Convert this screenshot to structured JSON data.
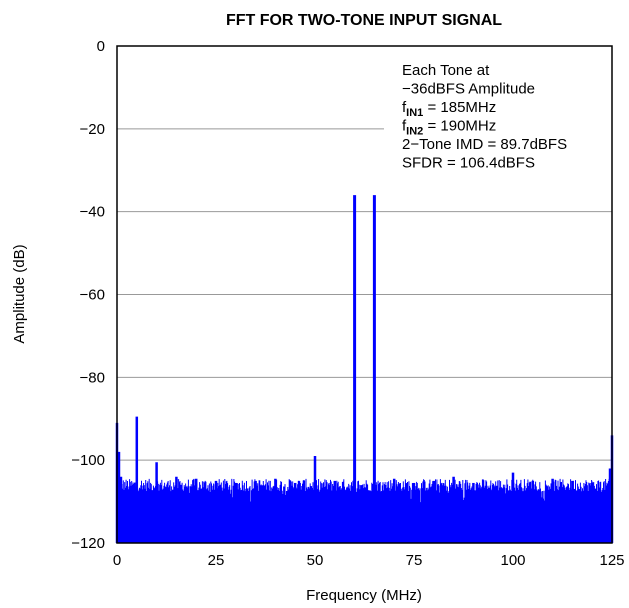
{
  "chart_data": {
    "type": "line",
    "title": "FFT FOR TWO-TONE INPUT SIGNAL",
    "xlabel": "Frequency (MHz)",
    "ylabel": "Amplitude (dB)",
    "xlim": [
      0,
      125
    ],
    "ylim": [
      -120,
      0
    ],
    "x_ticks": [
      0,
      25,
      50,
      75,
      100,
      125
    ],
    "y_ticks": [
      0,
      -20,
      -40,
      -60,
      -80,
      -100,
      -120
    ],
    "x_tick_labels": [
      "0",
      "25",
      "50",
      "75",
      "100",
      "125"
    ],
    "y_tick_labels": [
      "0",
      "−20",
      "−40",
      "−60",
      "−80",
      "−100",
      "−120"
    ],
    "grid": "horizontal",
    "line_color": "#0000ff",
    "noise_floor_db": -106,
    "spectrum": {
      "x": [
        0,
        0.5,
        1,
        5,
        10,
        15,
        20,
        25,
        30,
        35,
        40,
        45,
        50,
        55,
        60,
        65,
        70,
        75,
        80,
        85,
        90,
        95,
        100,
        105,
        110,
        115,
        120,
        124.5,
        125
      ],
      "y": [
        -91,
        -98,
        -104,
        -89.5,
        -100.5,
        -104,
        -104.5,
        -105,
        -105.5,
        -105,
        -104.5,
        -105.5,
        -99,
        -105,
        -36,
        -36,
        -104.5,
        -105.5,
        -105,
        -104,
        -105.5,
        -106,
        -103,
        -105,
        -104.5,
        -105,
        -105.5,
        -102,
        -94
      ]
    },
    "annotation": {
      "lines": [
        {
          "text": "Each Tone at"
        },
        {
          "text": "−36dBFS Amplitude"
        },
        {
          "prefix": "f",
          "sub": "IN1",
          "suffix": " = 185MHz"
        },
        {
          "prefix": "f",
          "sub": "IN2",
          "suffix": " = 190MHz"
        },
        {
          "text": "2−Tone IMD = 89.7dBFS"
        },
        {
          "text": "SFDR = 106.4dBFS"
        }
      ]
    }
  }
}
